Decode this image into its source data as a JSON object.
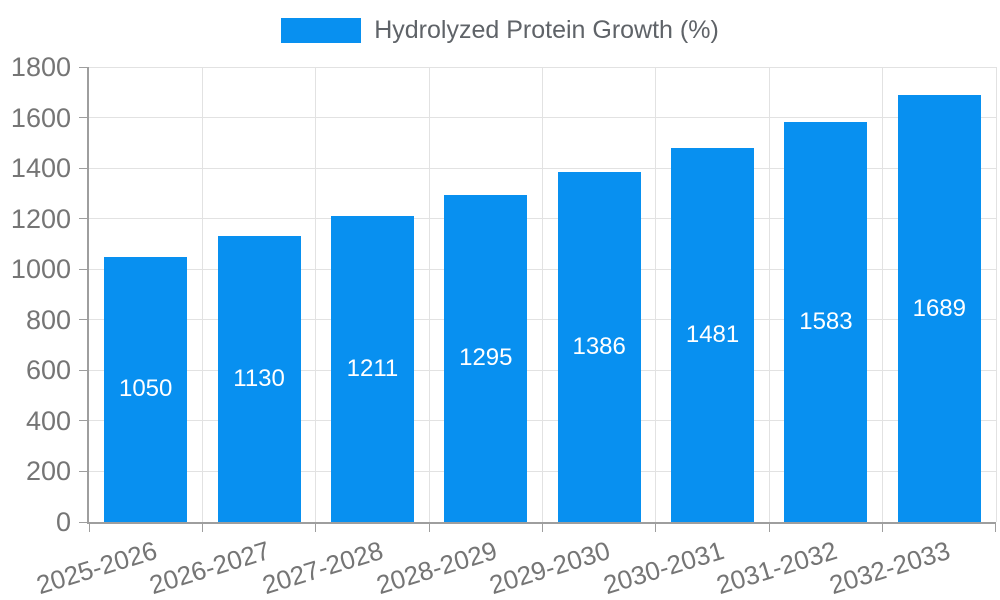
{
  "chart_data": {
    "type": "bar",
    "title": "Hydrolyzed Protein Growth (%)",
    "legend": {
      "label": "Hydrolyzed Protein Growth (%)",
      "position": "top"
    },
    "categories": [
      "2025-2026",
      "2026-2027",
      "2027-2028",
      "2028-2029",
      "2029-2030",
      "2030-2031",
      "2031-2032",
      "2032-2033"
    ],
    "values": [
      1050,
      1130,
      1211,
      1295,
      1386,
      1481,
      1583,
      1689
    ],
    "value_labels": [
      "1050",
      "1130",
      "1211",
      "1295",
      "1386",
      "1481",
      "1583",
      "1689"
    ],
    "xlabel": "",
    "ylabel": "",
    "ylim": [
      0,
      1800
    ],
    "ytick_step": 200,
    "yticks": [
      0,
      200,
      400,
      600,
      800,
      1000,
      1200,
      1400,
      1600,
      1800
    ],
    "grid": true,
    "legend_position": "top-center",
    "colors": {
      "bar": "#0890f0",
      "grid_line": "#e2e2e2",
      "axis_line": "#9e9e9e",
      "tick_label": "#757575",
      "legend_text": "#5f6368",
      "value_label": "#ffffff",
      "background": "#ffffff"
    }
  }
}
